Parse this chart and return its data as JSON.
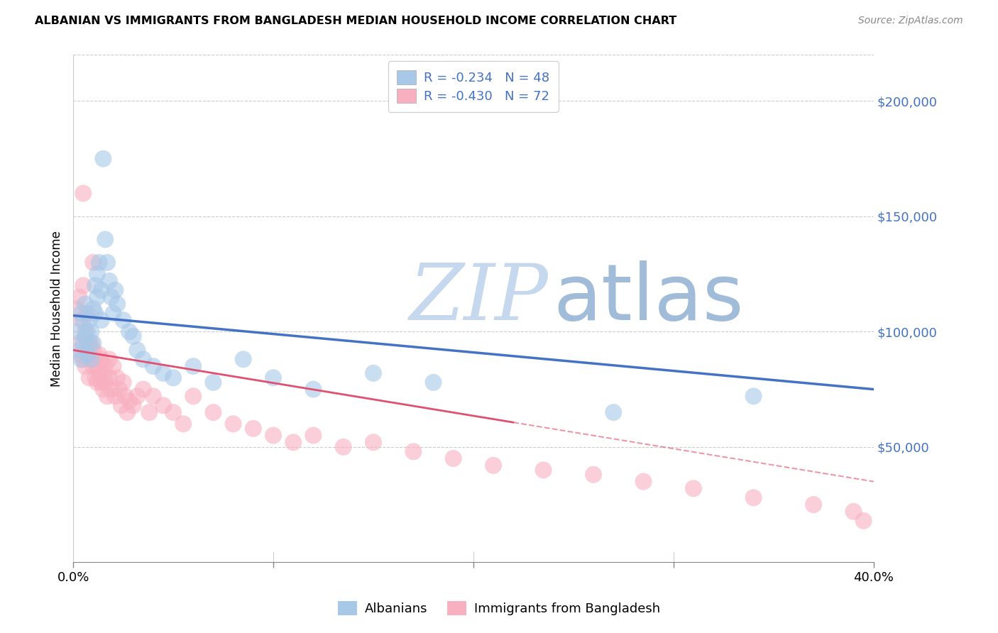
{
  "title": "ALBANIAN VS IMMIGRANTS FROM BANGLADESH MEDIAN HOUSEHOLD INCOME CORRELATION CHART",
  "source": "Source: ZipAtlas.com",
  "ylabel": "Median Household Income",
  "legend_label1": "Albanians",
  "legend_label2": "Immigrants from Bangladesh",
  "r1": -0.234,
  "n1": 48,
  "r2": -0.43,
  "n2": 72,
  "color1": "#a8c8e8",
  "color2": "#f8b0c0",
  "trendline1_color": "#4472c4",
  "trendline2_color": "#e05070",
  "watermark_zip": "ZIP",
  "watermark_atlas": "atlas",
  "watermark_color_zip": "#c5d8ee",
  "watermark_color_atlas": "#a0bcd8",
  "ytick_labels": [
    "$50,000",
    "$100,000",
    "$150,000",
    "$200,000"
  ],
  "ytick_values": [
    50000,
    100000,
    150000,
    200000
  ],
  "ymin": 0,
  "ymax": 220000,
  "xmin": 0.0,
  "xmax": 0.4,
  "albanians_x": [
    0.002,
    0.003,
    0.004,
    0.004,
    0.005,
    0.005,
    0.006,
    0.006,
    0.007,
    0.007,
    0.008,
    0.008,
    0.009,
    0.009,
    0.01,
    0.01,
    0.011,
    0.011,
    0.012,
    0.012,
    0.013,
    0.014,
    0.014,
    0.015,
    0.016,
    0.017,
    0.018,
    0.019,
    0.02,
    0.021,
    0.022,
    0.025,
    0.028,
    0.03,
    0.032,
    0.035,
    0.04,
    0.045,
    0.05,
    0.06,
    0.07,
    0.085,
    0.1,
    0.12,
    0.15,
    0.18,
    0.27,
    0.34
  ],
  "albanians_y": [
    100000,
    92000,
    88000,
    108000,
    95000,
    105000,
    98000,
    112000,
    100000,
    90000,
    95000,
    105000,
    88000,
    100000,
    110000,
    95000,
    120000,
    108000,
    115000,
    125000,
    130000,
    118000,
    105000,
    175000,
    140000,
    130000,
    122000,
    115000,
    108000,
    118000,
    112000,
    105000,
    100000,
    98000,
    92000,
    88000,
    85000,
    82000,
    80000,
    85000,
    78000,
    88000,
    80000,
    75000,
    82000,
    78000,
    65000,
    72000
  ],
  "bangladesh_x": [
    0.002,
    0.003,
    0.003,
    0.004,
    0.004,
    0.005,
    0.005,
    0.006,
    0.006,
    0.007,
    0.007,
    0.008,
    0.008,
    0.009,
    0.009,
    0.01,
    0.01,
    0.011,
    0.011,
    0.012,
    0.012,
    0.013,
    0.013,
    0.014,
    0.014,
    0.015,
    0.015,
    0.016,
    0.016,
    0.017,
    0.018,
    0.018,
    0.019,
    0.02,
    0.021,
    0.022,
    0.023,
    0.024,
    0.025,
    0.026,
    0.027,
    0.028,
    0.03,
    0.032,
    0.035,
    0.038,
    0.04,
    0.045,
    0.05,
    0.055,
    0.06,
    0.07,
    0.08,
    0.09,
    0.1,
    0.11,
    0.12,
    0.135,
    0.15,
    0.17,
    0.19,
    0.21,
    0.235,
    0.26,
    0.285,
    0.31,
    0.34,
    0.37,
    0.39,
    0.395,
    0.005,
    0.01
  ],
  "bangladesh_y": [
    110000,
    115000,
    95000,
    105000,
    90000,
    120000,
    88000,
    100000,
    85000,
    95000,
    108000,
    90000,
    80000,
    88000,
    95000,
    85000,
    92000,
    80000,
    88000,
    78000,
    85000,
    82000,
    90000,
    78000,
    88000,
    75000,
    82000,
    78000,
    85000,
    72000,
    80000,
    88000,
    75000,
    85000,
    72000,
    80000,
    75000,
    68000,
    78000,
    72000,
    65000,
    70000,
    68000,
    72000,
    75000,
    65000,
    72000,
    68000,
    65000,
    60000,
    72000,
    65000,
    60000,
    58000,
    55000,
    52000,
    55000,
    50000,
    52000,
    48000,
    45000,
    42000,
    40000,
    38000,
    35000,
    32000,
    28000,
    25000,
    22000,
    18000,
    160000,
    130000
  ]
}
